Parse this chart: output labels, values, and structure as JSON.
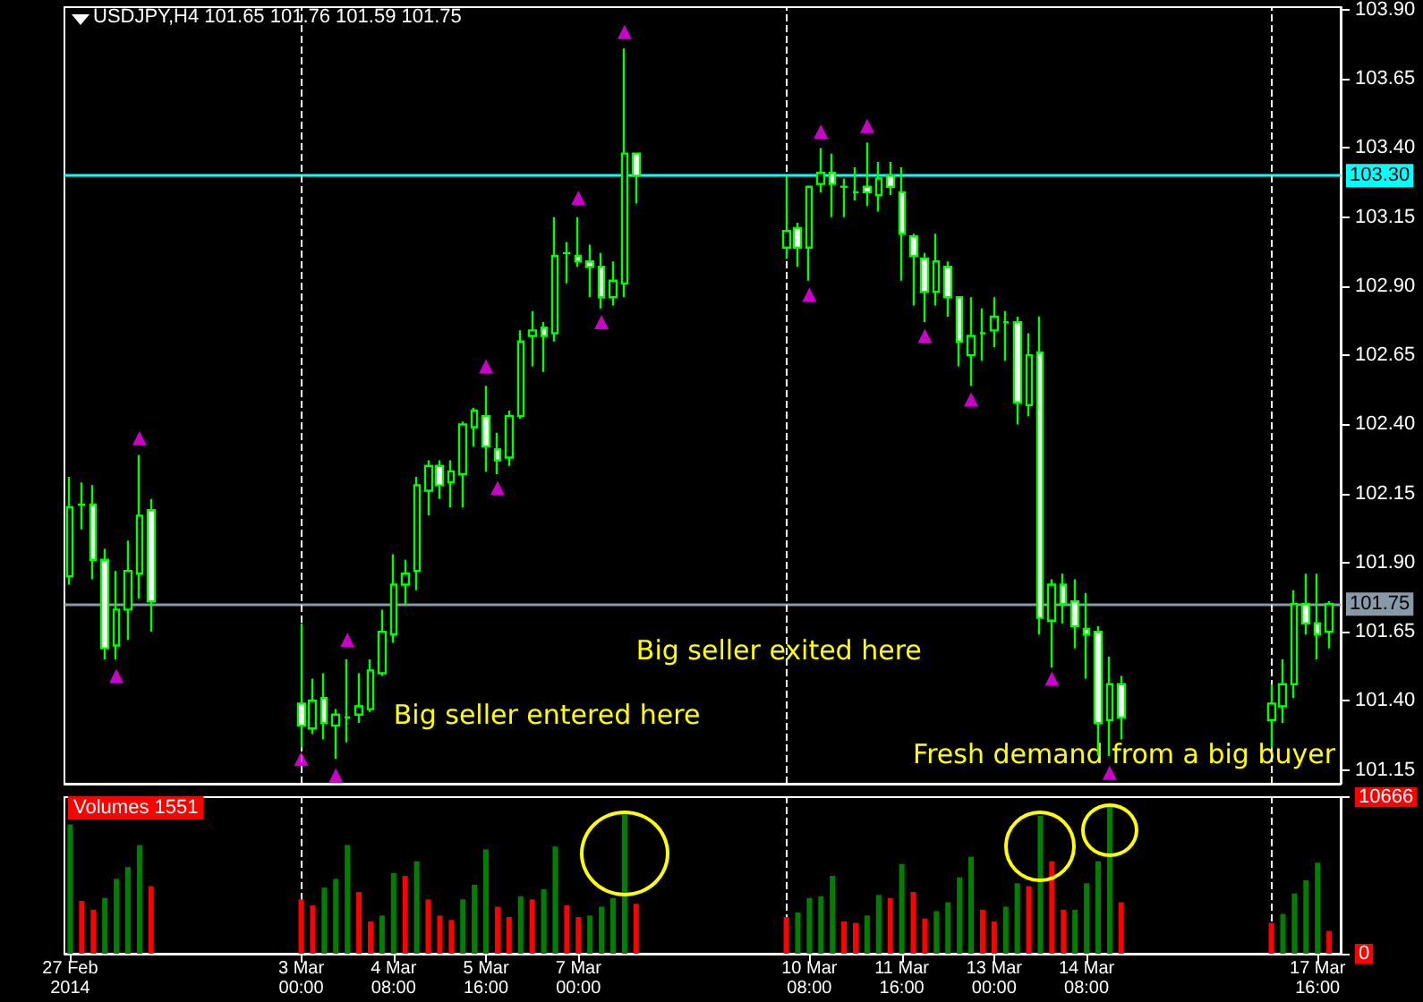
{
  "chart_data": [
    {
      "type": "candlestick",
      "title": "USDJPY,H4 101.65 101.76 101.59 101.75",
      "x": [
        "2014-02-27T16:00",
        "2014-02-27T20:00",
        "2014-02-28T00:00",
        "2014-02-28T04:00",
        "2014-02-28T08:00",
        "2014-02-28T12:00",
        "2014-02-28T16:00",
        "2014-02-28T20:00",
        "2014-03-03T00:00",
        "2014-03-03T04:00",
        "2014-03-03T08:00",
        "2014-03-03T12:00",
        "2014-03-03T16:00",
        "2014-03-03T20:00",
        "2014-03-04T00:00",
        "2014-03-04T04:00",
        "2014-03-04T08:00",
        "2014-03-04T12:00",
        "2014-03-04T16:00",
        "2014-03-04T20:00",
        "2014-03-05T00:00",
        "2014-03-05T04:00",
        "2014-03-05T08:00",
        "2014-03-05T12:00",
        "2014-03-05T16:00",
        "2014-03-05T20:00",
        "2014-03-06T00:00",
        "2014-03-06T04:00",
        "2014-03-06T08:00",
        "2014-03-06T12:00",
        "2014-03-06T16:00",
        "2014-03-06T20:00",
        "2014-03-07T00:00",
        "2014-03-07T04:00",
        "2014-03-07T08:00",
        "2014-03-07T12:00",
        "2014-03-07T16:00",
        "2014-03-07T20:00",
        "2014-03-10T00:00",
        "2014-03-10T04:00",
        "2014-03-10T08:00",
        "2014-03-10T12:00",
        "2014-03-10T16:00",
        "2014-03-10T20:00",
        "2014-03-11T00:00",
        "2014-03-11T04:00",
        "2014-03-11T08:00",
        "2014-03-11T12:00",
        "2014-03-11T16:00",
        "2014-03-11T20:00",
        "2014-03-12T00:00",
        "2014-03-12T04:00",
        "2014-03-12T08:00",
        "2014-03-12T12:00",
        "2014-03-12T16:00",
        "2014-03-12T20:00",
        "2014-03-13T00:00",
        "2014-03-13T04:00",
        "2014-03-13T08:00",
        "2014-03-13T12:00",
        "2014-03-13T16:00",
        "2014-03-13T20:00",
        "2014-03-14T00:00",
        "2014-03-14T04:00",
        "2014-03-14T08:00",
        "2014-03-14T12:00",
        "2014-03-14T16:00",
        "2014-03-14T20:00",
        "2014-03-17T00:00",
        "2014-03-17T04:00",
        "2014-03-17T08:00",
        "2014-03-17T12:00",
        "2014-03-17T16:00",
        "2014-03-17T20:00"
      ],
      "xlim": [
        "2014-02-27T14:00",
        "2014-03-18T00:00"
      ],
      "ylim": [
        101.1,
        103.91
      ],
      "yticks": [
        {
          "value": 101.15,
          "label": "101.15"
        },
        {
          "value": 101.4,
          "label": "101.40"
        },
        {
          "value": 101.65,
          "label": "101.65"
        },
        {
          "value": 101.9,
          "label": "101.90"
        },
        {
          "value": 102.15,
          "label": "102.15"
        },
        {
          "value": 102.4,
          "label": "102.40"
        },
        {
          "value": 102.65,
          "label": "102.65"
        },
        {
          "value": 102.9,
          "label": "102.90"
        },
        {
          "value": 103.15,
          "label": "103.15"
        },
        {
          "value": 103.4,
          "label": "103.40"
        },
        {
          "value": 103.65,
          "label": "103.65"
        },
        {
          "value": 103.9,
          "label": "103.90"
        }
      ],
      "tick_labels": "y",
      "series": [
        {
          "type": "candlestick",
          "color": "#00ff00",
          "ohlc": [
            [
              101.85,
              102.21,
              101.82,
              102.1
            ],
            [
              102.11,
              102.19,
              102.02,
              102.11
            ],
            [
              102.11,
              102.18,
              101.84,
              101.91
            ],
            [
              101.91,
              101.95,
              101.55,
              101.59
            ],
            [
              101.6,
              101.87,
              101.55,
              101.73
            ],
            [
              101.73,
              101.98,
              101.62,
              101.87
            ],
            [
              101.86,
              102.29,
              101.77,
              102.07
            ],
            [
              102.09,
              102.13,
              101.65,
              101.76
            ],
            [
              101.39,
              101.68,
              101.23,
              101.31
            ],
            [
              101.3,
              101.48,
              101.28,
              101.4
            ],
            [
              101.41,
              101.5,
              101.26,
              101.32
            ],
            [
              101.31,
              101.37,
              101.19,
              101.35
            ],
            [
              101.34,
              101.55,
              101.25,
              101.34
            ],
            [
              101.35,
              101.5,
              101.32,
              101.38
            ],
            [
              101.37,
              101.55,
              101.36,
              101.51
            ],
            [
              101.5,
              101.73,
              101.49,
              101.65
            ],
            [
              101.64,
              101.93,
              101.61,
              101.82
            ],
            [
              101.82,
              101.91,
              101.75,
              101.86
            ],
            [
              101.87,
              102.21,
              101.8,
              102.18
            ],
            [
              102.16,
              102.27,
              102.07,
              102.25
            ],
            [
              102.25,
              102.27,
              102.13,
              102.18
            ],
            [
              102.19,
              102.27,
              102.1,
              102.23
            ],
            [
              102.22,
              102.41,
              102.1,
              102.4
            ],
            [
              102.39,
              102.46,
              102.32,
              102.45
            ],
            [
              102.43,
              102.54,
              102.23,
              102.32
            ],
            [
              102.31,
              102.37,
              102.22,
              102.27
            ],
            [
              102.28,
              102.45,
              102.25,
              102.43
            ],
            [
              102.43,
              102.74,
              102.42,
              102.7
            ],
            [
              102.72,
              102.81,
              102.61,
              102.74
            ],
            [
              102.75,
              102.77,
              102.59,
              102.72
            ],
            [
              102.73,
              103.15,
              102.7,
              103.01
            ],
            [
              103.02,
              103.06,
              102.91,
              103.02
            ],
            [
              103.01,
              103.15,
              102.97,
              102.99
            ],
            [
              102.99,
              103.05,
              102.86,
              102.97
            ],
            [
              102.97,
              103.02,
              102.82,
              102.86
            ],
            [
              102.86,
              102.99,
              102.83,
              102.92
            ],
            [
              102.91,
              103.76,
              102.86,
              103.38
            ],
            [
              103.38,
              103.38,
              103.2,
              103.3
            ],
            [
              103.04,
              103.3,
              103.0,
              103.1
            ],
            [
              103.11,
              103.13,
              102.97,
              103.04
            ],
            [
              103.04,
              103.26,
              102.92,
              103.26
            ],
            [
              103.27,
              103.4,
              103.24,
              103.31
            ],
            [
              103.31,
              103.38,
              103.15,
              103.27
            ],
            [
              103.26,
              103.29,
              103.15,
              103.26
            ],
            [
              103.24,
              103.33,
              103.21,
              103.24
            ],
            [
              103.26,
              103.42,
              103.19,
              103.24
            ],
            [
              103.23,
              103.35,
              103.17,
              103.29
            ],
            [
              103.3,
              103.35,
              103.23,
              103.26
            ],
            [
              103.24,
              103.33,
              102.92,
              103.09
            ],
            [
              103.08,
              103.09,
              102.83,
              103.01
            ],
            [
              103.0,
              103.02,
              102.77,
              102.88
            ],
            [
              102.88,
              103.09,
              102.83,
              102.99
            ],
            [
              102.97,
              102.99,
              102.79,
              102.86
            ],
            [
              102.86,
              102.86,
              102.61,
              102.7
            ],
            [
              102.65,
              102.86,
              102.54,
              102.72
            ],
            [
              102.73,
              102.82,
              102.63,
              102.73
            ],
            [
              102.74,
              102.86,
              102.68,
              102.79
            ],
            [
              102.77,
              102.81,
              102.63,
              102.77
            ],
            [
              102.77,
              102.79,
              102.4,
              102.48
            ],
            [
              102.47,
              102.73,
              102.43,
              102.65
            ],
            [
              102.66,
              102.79,
              101.64,
              101.7
            ],
            [
              101.69,
              101.84,
              101.52,
              101.82
            ],
            [
              101.82,
              101.86,
              101.68,
              101.75
            ],
            [
              101.76,
              101.84,
              101.59,
              101.67
            ],
            [
              101.66,
              101.79,
              101.48,
              101.64
            ],
            [
              101.65,
              101.67,
              101.2,
              101.32
            ],
            [
              101.33,
              101.56,
              101.2,
              101.46
            ],
            [
              101.46,
              101.49,
              101.26,
              101.34
            ],
            [
              101.33,
              101.46,
              101.23,
              101.39
            ],
            [
              101.38,
              101.55,
              101.32,
              101.46
            ],
            [
              101.46,
              101.8,
              101.41,
              101.75
            ],
            [
              101.75,
              101.86,
              101.64,
              101.68
            ],
            [
              101.68,
              101.86,
              101.55,
              101.64
            ],
            [
              101.65,
              101.76,
              101.59,
              101.75
            ]
          ]
        },
        {
          "type": "scatter",
          "color": "#ff00ff",
          "marker": "triangle",
          "x": [
            "2014-02-28T16:00",
            "2014-03-03T16:00",
            "2014-03-05T16:00",
            "2014-03-07T00:00",
            "2014-03-07T16:00",
            "2014-03-10T12:00",
            "2014-03-11T04:00"
          ],
          "values": [
            102.35,
            101.62,
            102.61,
            103.22,
            103.82,
            103.46,
            103.48
          ]
        },
        {
          "type": "scatter",
          "color": "#ff00ff",
          "marker": "triangle",
          "x": [
            "2014-02-28T08:00",
            "2014-03-03T00:00",
            "2014-03-03T12:00",
            "2014-03-05T20:00",
            "2014-03-07T08:00",
            "2014-03-10T08:00",
            "2014-03-12T00:00",
            "2014-03-12T16:00",
            "2014-03-13T20:00",
            "2014-03-14T16:00"
          ],
          "values": [
            101.49,
            101.19,
            101.13,
            102.17,
            102.77,
            102.87,
            102.72,
            102.49,
            101.48,
            101.14
          ]
        }
      ],
      "ref_lines": [
        {
          "axis": "y",
          "value": 103.3,
          "label": "103.30",
          "color": "#00ffff"
        },
        {
          "axis": "y",
          "value": 101.75,
          "label": "101.75",
          "color": "#8899aa"
        },
        {
          "axis": "x",
          "value": "2014-03-03T00:00",
          "color": "#ffffff",
          "line_style": "dashed"
        },
        {
          "axis": "x",
          "value": "2014-03-10T00:00",
          "color": "#ffffff",
          "line_style": "dashed"
        },
        {
          "axis": "x",
          "value": "2014-03-17T00:00",
          "color": "#ffffff",
          "line_style": "dashed"
        }
      ],
      "annotations": [
        "Big seller entered here",
        "Big seller exited here",
        "Fresh demand from a big buyer"
      ]
    },
    {
      "type": "bar",
      "title": "Volumes 1551",
      "x": [
        "2014-02-27T16:00",
        "2014-02-27T20:00",
        "2014-02-28T00:00",
        "2014-02-28T04:00",
        "2014-02-28T08:00",
        "2014-02-28T12:00",
        "2014-02-28T16:00",
        "2014-02-28T20:00",
        "2014-03-03T00:00",
        "2014-03-03T04:00",
        "2014-03-03T08:00",
        "2014-03-03T12:00",
        "2014-03-03T16:00",
        "2014-03-03T20:00",
        "2014-03-04T00:00",
        "2014-03-04T04:00",
        "2014-03-04T08:00",
        "2014-03-04T12:00",
        "2014-03-04T16:00",
        "2014-03-04T20:00",
        "2014-03-05T00:00",
        "2014-03-05T04:00",
        "2014-03-05T08:00",
        "2014-03-05T12:00",
        "2014-03-05T16:00",
        "2014-03-05T20:00",
        "2014-03-06T00:00",
        "2014-03-06T04:00",
        "2014-03-06T08:00",
        "2014-03-06T12:00",
        "2014-03-06T16:00",
        "2014-03-06T20:00",
        "2014-03-07T00:00",
        "2014-03-07T04:00",
        "2014-03-07T08:00",
        "2014-03-07T12:00",
        "2014-03-07T16:00",
        "2014-03-07T20:00",
        "2014-03-10T00:00",
        "2014-03-10T04:00",
        "2014-03-10T08:00",
        "2014-03-10T12:00",
        "2014-03-10T16:00",
        "2014-03-10T20:00",
        "2014-03-11T00:00",
        "2014-03-11T04:00",
        "2014-03-11T08:00",
        "2014-03-11T12:00",
        "2014-03-11T16:00",
        "2014-03-11T20:00",
        "2014-03-12T00:00",
        "2014-03-12T04:00",
        "2014-03-12T08:00",
        "2014-03-12T12:00",
        "2014-03-12T16:00",
        "2014-03-12T20:00",
        "2014-03-13T00:00",
        "2014-03-13T04:00",
        "2014-03-13T08:00",
        "2014-03-13T12:00",
        "2014-03-13T16:00",
        "2014-03-13T20:00",
        "2014-03-14T00:00",
        "2014-03-14T04:00",
        "2014-03-14T08:00",
        "2014-03-14T12:00",
        "2014-03-14T16:00",
        "2014-03-14T20:00",
        "2014-03-17T00:00",
        "2014-03-17T04:00",
        "2014-03-17T08:00",
        "2014-03-17T12:00",
        "2014-03-17T16:00",
        "2014-03-17T20:00"
      ],
      "xticks": [
        {
          "value": "2014-02-27T16:00",
          "label": "27 Feb 2014"
        },
        {
          "value": "2014-03-03T00:00",
          "label": "3 Mar 00:00"
        },
        {
          "value": "2014-03-04T08:00",
          "label": "4 Mar 08:00"
        },
        {
          "value": "2014-03-05T16:00",
          "label": "5 Mar 16:00"
        },
        {
          "value": "2014-03-07T00:00",
          "label": "7 Mar 00:00"
        },
        {
          "value": "2014-03-10T08:00",
          "label": "10 Mar 08:00"
        },
        {
          "value": "2014-03-11T16:00",
          "label": "11 Mar 16:00"
        },
        {
          "value": "2014-03-13T00:00",
          "label": "13 Mar 00:00"
        },
        {
          "value": "2014-03-14T08:00",
          "label": "14 Mar 08:00"
        },
        {
          "value": "2014-03-17T16:00",
          "label": "17 Mar 16:00"
        }
      ],
      "xlim": [
        "2014-02-27T14:00",
        "2014-03-18T00:00"
      ],
      "values": [
        8800,
        3600,
        3000,
        3800,
        5100,
        5900,
        7400,
        4600,
        3700,
        3300,
        4500,
        5100,
        7400,
        4200,
        2200,
        2600,
        5500,
        5300,
        6300,
        3700,
        2600,
        2300,
        3700,
        4700,
        7100,
        3200,
        2500,
        3900,
        3700,
        4400,
        7300,
        3300,
        2500,
        2600,
        3200,
        3800,
        9500,
        3400,
        2500,
        2800,
        3800,
        3900,
        5300,
        2200,
        2100,
        2600,
        4000,
        3800,
        6100,
        4200,
        2400,
        2900,
        3500,
        5200,
        6600,
        3000,
        2200,
        3200,
        4800,
        4600,
        9400,
        6300,
        3000,
        3000,
        4800,
        6300,
        10100,
        3500,
        2100,
        2700,
        4100,
        5000,
        6200,
        1551
      ],
      "colors": [
        "#008000",
        "#ff0000",
        "#ff0000",
        "#008000",
        "#008000",
        "#008000",
        "#008000",
        "#ff0000",
        "#ff0000",
        "#ff0000",
        "#008000",
        "#008000",
        "#008000",
        "#ff0000",
        "#ff0000",
        "#008000",
        "#008000",
        "#ff0000",
        "#008000",
        "#ff0000",
        "#ff0000",
        "#ff0000",
        "#008000",
        "#008000",
        "#008000",
        "#ff0000",
        "#ff0000",
        "#008000",
        "#ff0000",
        "#008000",
        "#008000",
        "#ff0000",
        "#ff0000",
        "#008000",
        "#008000",
        "#008000",
        "#008000",
        "#ff0000",
        "#ff0000",
        "#008000",
        "#008000",
        "#008000",
        "#008000",
        "#ff0000",
        "#ff0000",
        "#008000",
        "#008000",
        "#ff0000",
        "#008000",
        "#ff0000",
        "#ff0000",
        "#008000",
        "#008000",
        "#008000",
        "#008000",
        "#ff0000",
        "#ff0000",
        "#008000",
        "#008000",
        "#ff0000",
        "#008000",
        "#ff0000",
        "#ff0000",
        "#008000",
        "#008000",
        "#008000",
        "#008000",
        "#ff0000",
        "#ff0000",
        "#008000",
        "#008000",
        "#008000",
        "#008000",
        "#ff0000"
      ],
      "ylim": [
        0,
        10666
      ],
      "yticks": [
        0,
        10666
      ],
      "ref_lines": [
        {
          "axis": "x",
          "value": "2014-03-03T00:00",
          "color": "#ffffff",
          "line_style": "dashed"
        },
        {
          "axis": "x",
          "value": "2014-03-10T00:00",
          "color": "#ffffff",
          "line_style": "dashed"
        },
        {
          "axis": "x",
          "value": "2014-03-17T00:00",
          "color": "#ffffff",
          "line_style": "dashed"
        }
      ]
    }
  ]
}
